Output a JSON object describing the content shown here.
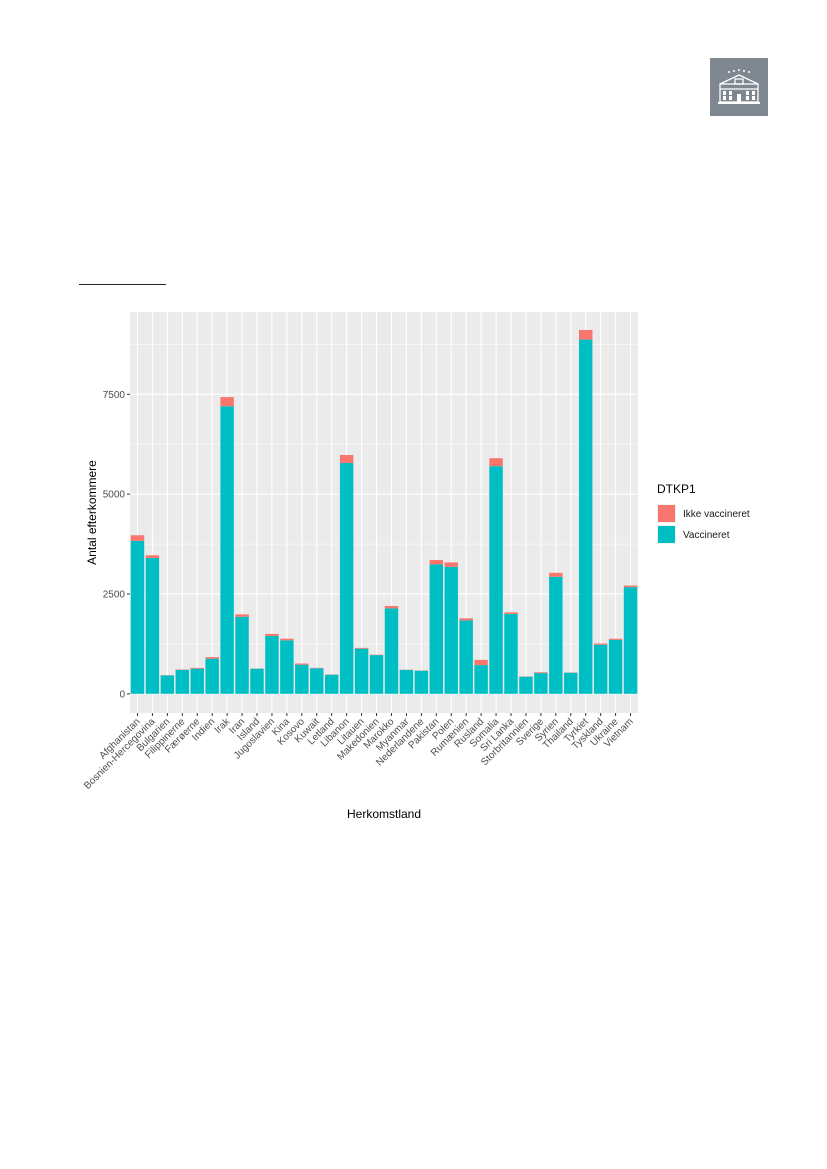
{
  "chart_data": {
    "type": "bar",
    "stacked": true,
    "xlabel": "Herkomstland",
    "ylabel": "Antal efterkommere",
    "ylim": [
      -480,
      9560
    ],
    "yticks": [
      0,
      2500,
      5000,
      7500
    ],
    "grid": true,
    "background": "#EBEBEB",
    "legend_position": "right",
    "legend_title": "DTKP1",
    "categories": [
      "Afghanistan",
      "Bosnien-Hercegovina",
      "Bulgarien",
      "Filippinerne",
      "Færøerne",
      "Indien",
      "Irak",
      "Iran",
      "Island",
      "Jugoslavien",
      "Kina",
      "Kosovo",
      "Kuwait",
      "Letland",
      "Libanon",
      "Litauen",
      "Makedonien",
      "Marokko",
      "Myanmar",
      "Nederlandene",
      "Pakistan",
      "Polen",
      "Rumænien",
      "Rusland",
      "Somalia",
      "Sri Lanka",
      "Storbritannien",
      "Sverige",
      "Syrien",
      "Thailand",
      "Tyrkiet",
      "Tyskland",
      "Ukraine",
      "Vietnam"
    ],
    "series": [
      {
        "name": "Vaccineret",
        "color": "#00BFC4",
        "values": [
          3830,
          3400,
          460,
          600,
          630,
          880,
          7200,
          1930,
          630,
          1450,
          1340,
          730,
          640,
          480,
          5780,
          1130,
          970,
          2140,
          600,
          580,
          3240,
          3180,
          1840,
          720,
          5700,
          2000,
          430,
          520,
          2930,
          530,
          8870,
          1230,
          1350,
          2670
        ]
      },
      {
        "name": "Ikke vaccineret",
        "color": "#F8766D",
        "values": [
          140,
          70,
          5,
          10,
          20,
          40,
          230,
          60,
          5,
          50,
          40,
          30,
          10,
          5,
          200,
          20,
          10,
          60,
          5,
          5,
          110,
          110,
          50,
          130,
          200,
          40,
          5,
          20,
          100,
          5,
          240,
          30,
          30,
          40
        ]
      }
    ]
  }
}
